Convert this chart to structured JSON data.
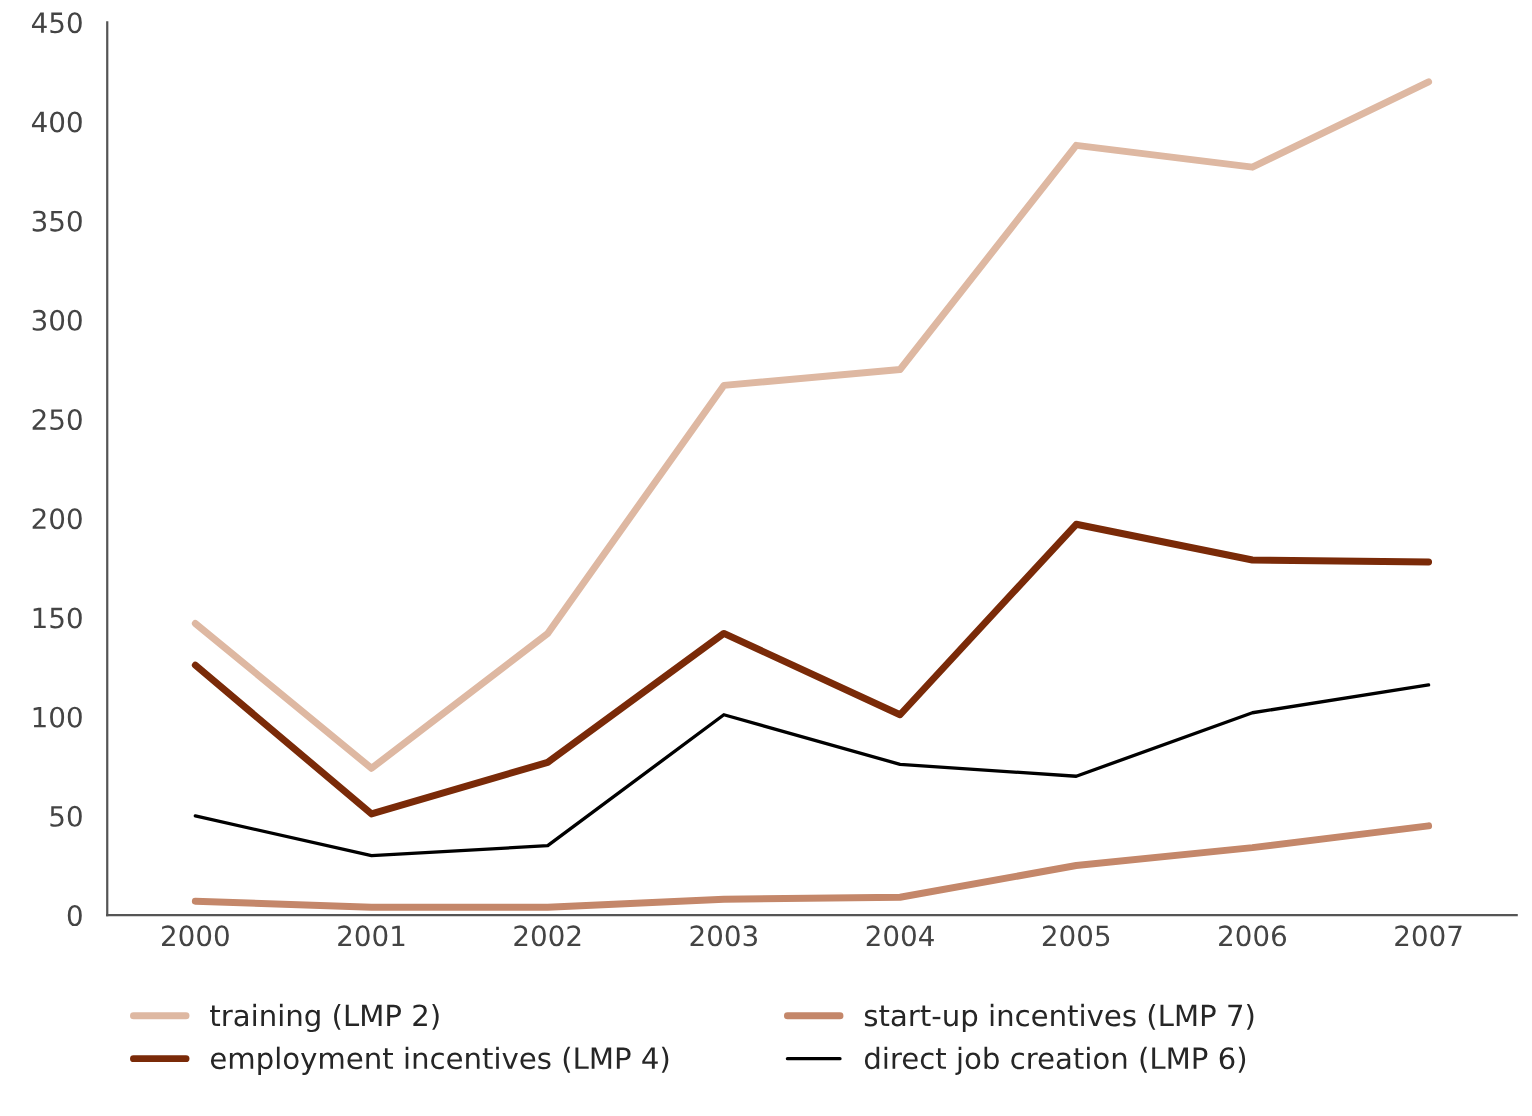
{
  "chart_data": {
    "type": "line",
    "categories": [
      "2000",
      "2001",
      "2002",
      "2003",
      "2004",
      "2005",
      "2006",
      "2007"
    ],
    "series": [
      {
        "name": "training (LMP 2)",
        "color": "#deb8a2",
        "values": [
          147,
          74,
          142,
          267,
          275,
          388,
          377,
          420
        ]
      },
      {
        "name": "start-up incentives (LMP 7)",
        "color": "#c4876a",
        "values": [
          7,
          4,
          4,
          8,
          9,
          25,
          34,
          45
        ]
      },
      {
        "name": "employment incentives (LMP 4)",
        "color": "#7a2a08",
        "values": [
          126,
          51,
          77,
          142,
          101,
          197,
          179,
          178
        ]
      },
      {
        "name": "direct job creation (LMP 6)",
        "color": "#000000",
        "values": [
          50,
          30,
          35,
          101,
          76,
          70,
          102,
          116
        ]
      }
    ],
    "ylim": [
      0,
      450
    ],
    "yticks": [
      0,
      50,
      100,
      150,
      200,
      250,
      300,
      350,
      400,
      450
    ],
    "grid": false,
    "legend": "bottom",
    "line_style": "solid",
    "marker": "none"
  }
}
